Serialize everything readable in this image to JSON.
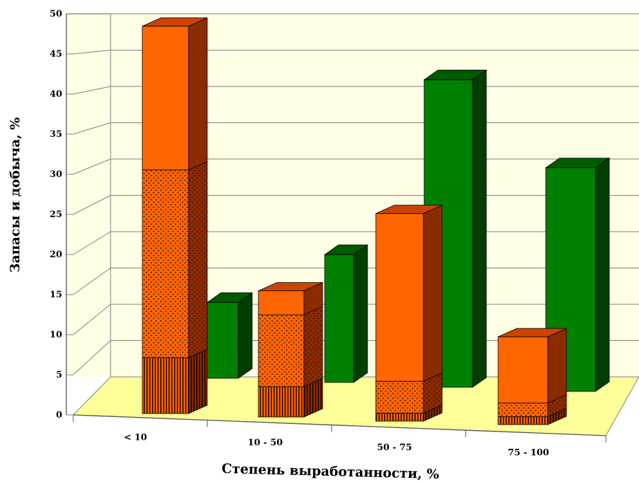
{
  "chart_data": {
    "type": "bar",
    "style": "3d-stacked-and-clustered",
    "xlabel": "Степень выработанности, %",
    "ylabel": "Запасы и добыча, %",
    "ylim": [
      0,
      50
    ],
    "yticks": [
      0,
      5,
      10,
      15,
      20,
      25,
      30,
      35,
      40,
      45,
      50
    ],
    "categories": [
      "< 10",
      "10 - 50",
      "50 - 75",
      "75 - 100"
    ],
    "grid": true,
    "legend": "none",
    "front_stack": {
      "segments": [
        {
          "pattern": "vertical-stripes",
          "values": [
            7,
            3.8,
            1,
            1
          ]
        },
        {
          "pattern": "dotted",
          "values": [
            23.5,
            9,
            4,
            1.7
          ]
        },
        {
          "pattern": "solid",
          "values": [
            18,
            3,
            21,
            8.3
          ]
        }
      ],
      "totals": [
        48.5,
        15.8,
        26,
        11
      ]
    },
    "back_series": {
      "values": [
        9.5,
        16,
        38.5,
        28
      ]
    },
    "colors": {
      "orange_front": "#FF6600",
      "orange_side": "#8B2B00",
      "orange_top": "#CC4400",
      "green_front": "#008000",
      "green_side": "#003F00",
      "green_top": "#005A00",
      "wall": "#FFFFE6",
      "floor": "#FFFF99",
      "grid": "#7F7F7F"
    }
  }
}
